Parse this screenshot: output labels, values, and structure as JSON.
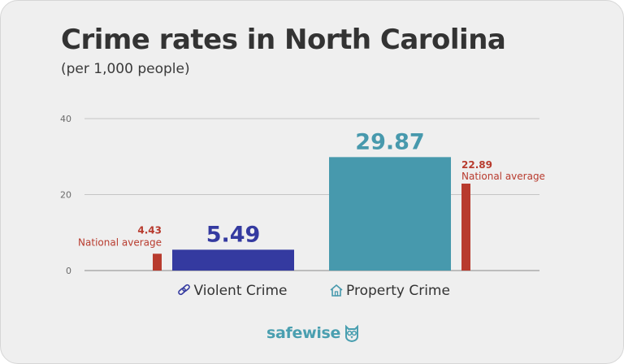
{
  "title": "Crime rates in North Carolina",
  "subtitle": "(per 1,000 people)",
  "brand": {
    "logo_text": "safewise",
    "icon": "owl-icon"
  },
  "colors": {
    "violent": "#343aa0",
    "property": "#4799ad",
    "national": "#b83b2e",
    "grid": "#c4c4c4",
    "tick_text": "#6b6b6b",
    "category_text": "#333333"
  },
  "chart_data": {
    "type": "bar",
    "title": "Crime rates in North Carolina",
    "subtitle": "(per 1,000 people)",
    "ylim": [
      0,
      40
    ],
    "yticks": [
      0,
      20,
      40
    ],
    "grid": true,
    "categories": [
      {
        "label": "Violent Crime",
        "icon": "link-icon",
        "value": 5.49,
        "value_label": "5.49",
        "national_average": 4.43,
        "national_label": "4.43",
        "national_text": "National average",
        "national_side": "left"
      },
      {
        "label": "Property Crime",
        "icon": "house-icon",
        "value": 29.87,
        "value_label": "29.87",
        "national_average": 22.89,
        "national_label": "22.89",
        "national_text": "National average",
        "national_side": "right"
      }
    ],
    "series": [
      {
        "name": "North Carolina",
        "values": [
          5.49,
          29.87
        ]
      },
      {
        "name": "National average",
        "values": [
          4.43,
          22.89
        ]
      }
    ]
  }
}
